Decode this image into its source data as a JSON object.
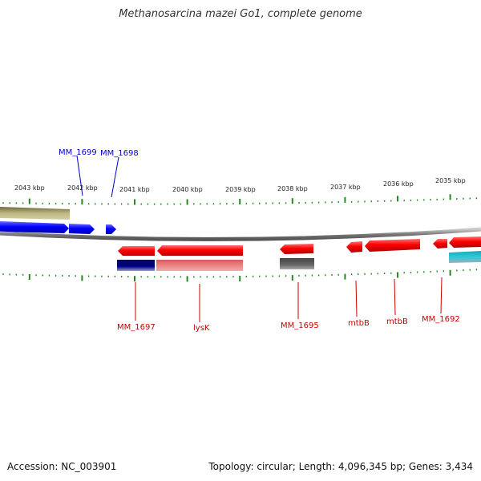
{
  "title": "Methanosarcina mazei Go1, complete genome",
  "scale_labels": [
    "2043 kbp",
    "2042 kbp",
    "2041 kbp",
    "2040 kbp",
    "2039 kbp",
    "2038 kbp",
    "2037 kbp",
    "2036 kbp",
    "2035 kbp"
  ],
  "upper_labels": [
    "MM_1699",
    "MM_1698"
  ],
  "lower_labels": [
    "MM_1697",
    "lysK",
    "MM_1695",
    "mtbB",
    "mtbB",
    "MM_1692"
  ],
  "footer": {
    "accession": "Accession: NC_003901",
    "summary": "Topology: circular; Length: 4,096,345 bp; Genes: 3,434"
  },
  "colors": {
    "upper_label": "#0000cc",
    "lower_label": "#cc0000",
    "forward_gene": "#0000ff",
    "reverse_gene": "#ff0000",
    "tick": "#228822",
    "backbone": "#888888"
  }
}
